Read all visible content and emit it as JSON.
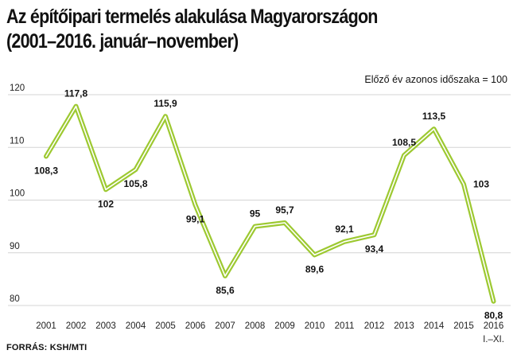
{
  "header": {
    "title_line1": "Az építőipari termelés alakulása Magyarországon",
    "title_line2": "(2001–2016. január–november)",
    "note": "Előző év azonos időszaka = 100"
  },
  "footer": {
    "source": "FORRÁS: KSH/MTI"
  },
  "colors": {
    "line": "#9dc931",
    "grid": "#d4d4d4"
  },
  "chart_data": {
    "type": "line",
    "x": [
      "2001",
      "2002",
      "2003",
      "2004",
      "2005",
      "2006",
      "2007",
      "2008",
      "2009",
      "2010",
      "2011",
      "2012",
      "2013",
      "2014",
      "2015",
      "2016"
    ],
    "x_sublabel_last": "I.–XI.",
    "series": [
      {
        "values": [
          108.3,
          117.8,
          102,
          105.8,
          115.9,
          99.1,
          85.6,
          95,
          95.7,
          89.6,
          92.1,
          93.4,
          108.5,
          113.5,
          103,
          80.8
        ]
      }
    ],
    "labels": [
      "108,3",
      "117,8",
      "102",
      "105,8",
      "115,9",
      "99,1",
      "85,6",
      "95",
      "95,7",
      "89,6",
      "92,1",
      "93,4",
      "108,5",
      "113,5",
      "103",
      "80,8"
    ],
    "label_positions": [
      "below",
      "above",
      "below",
      "below",
      "above",
      "below",
      "below",
      "above",
      "above",
      "below",
      "above",
      "below",
      "above",
      "above",
      "right",
      "below"
    ],
    "yticks": [
      80,
      90,
      100,
      110,
      120
    ],
    "ylim": [
      80,
      120
    ],
    "grid": true
  }
}
